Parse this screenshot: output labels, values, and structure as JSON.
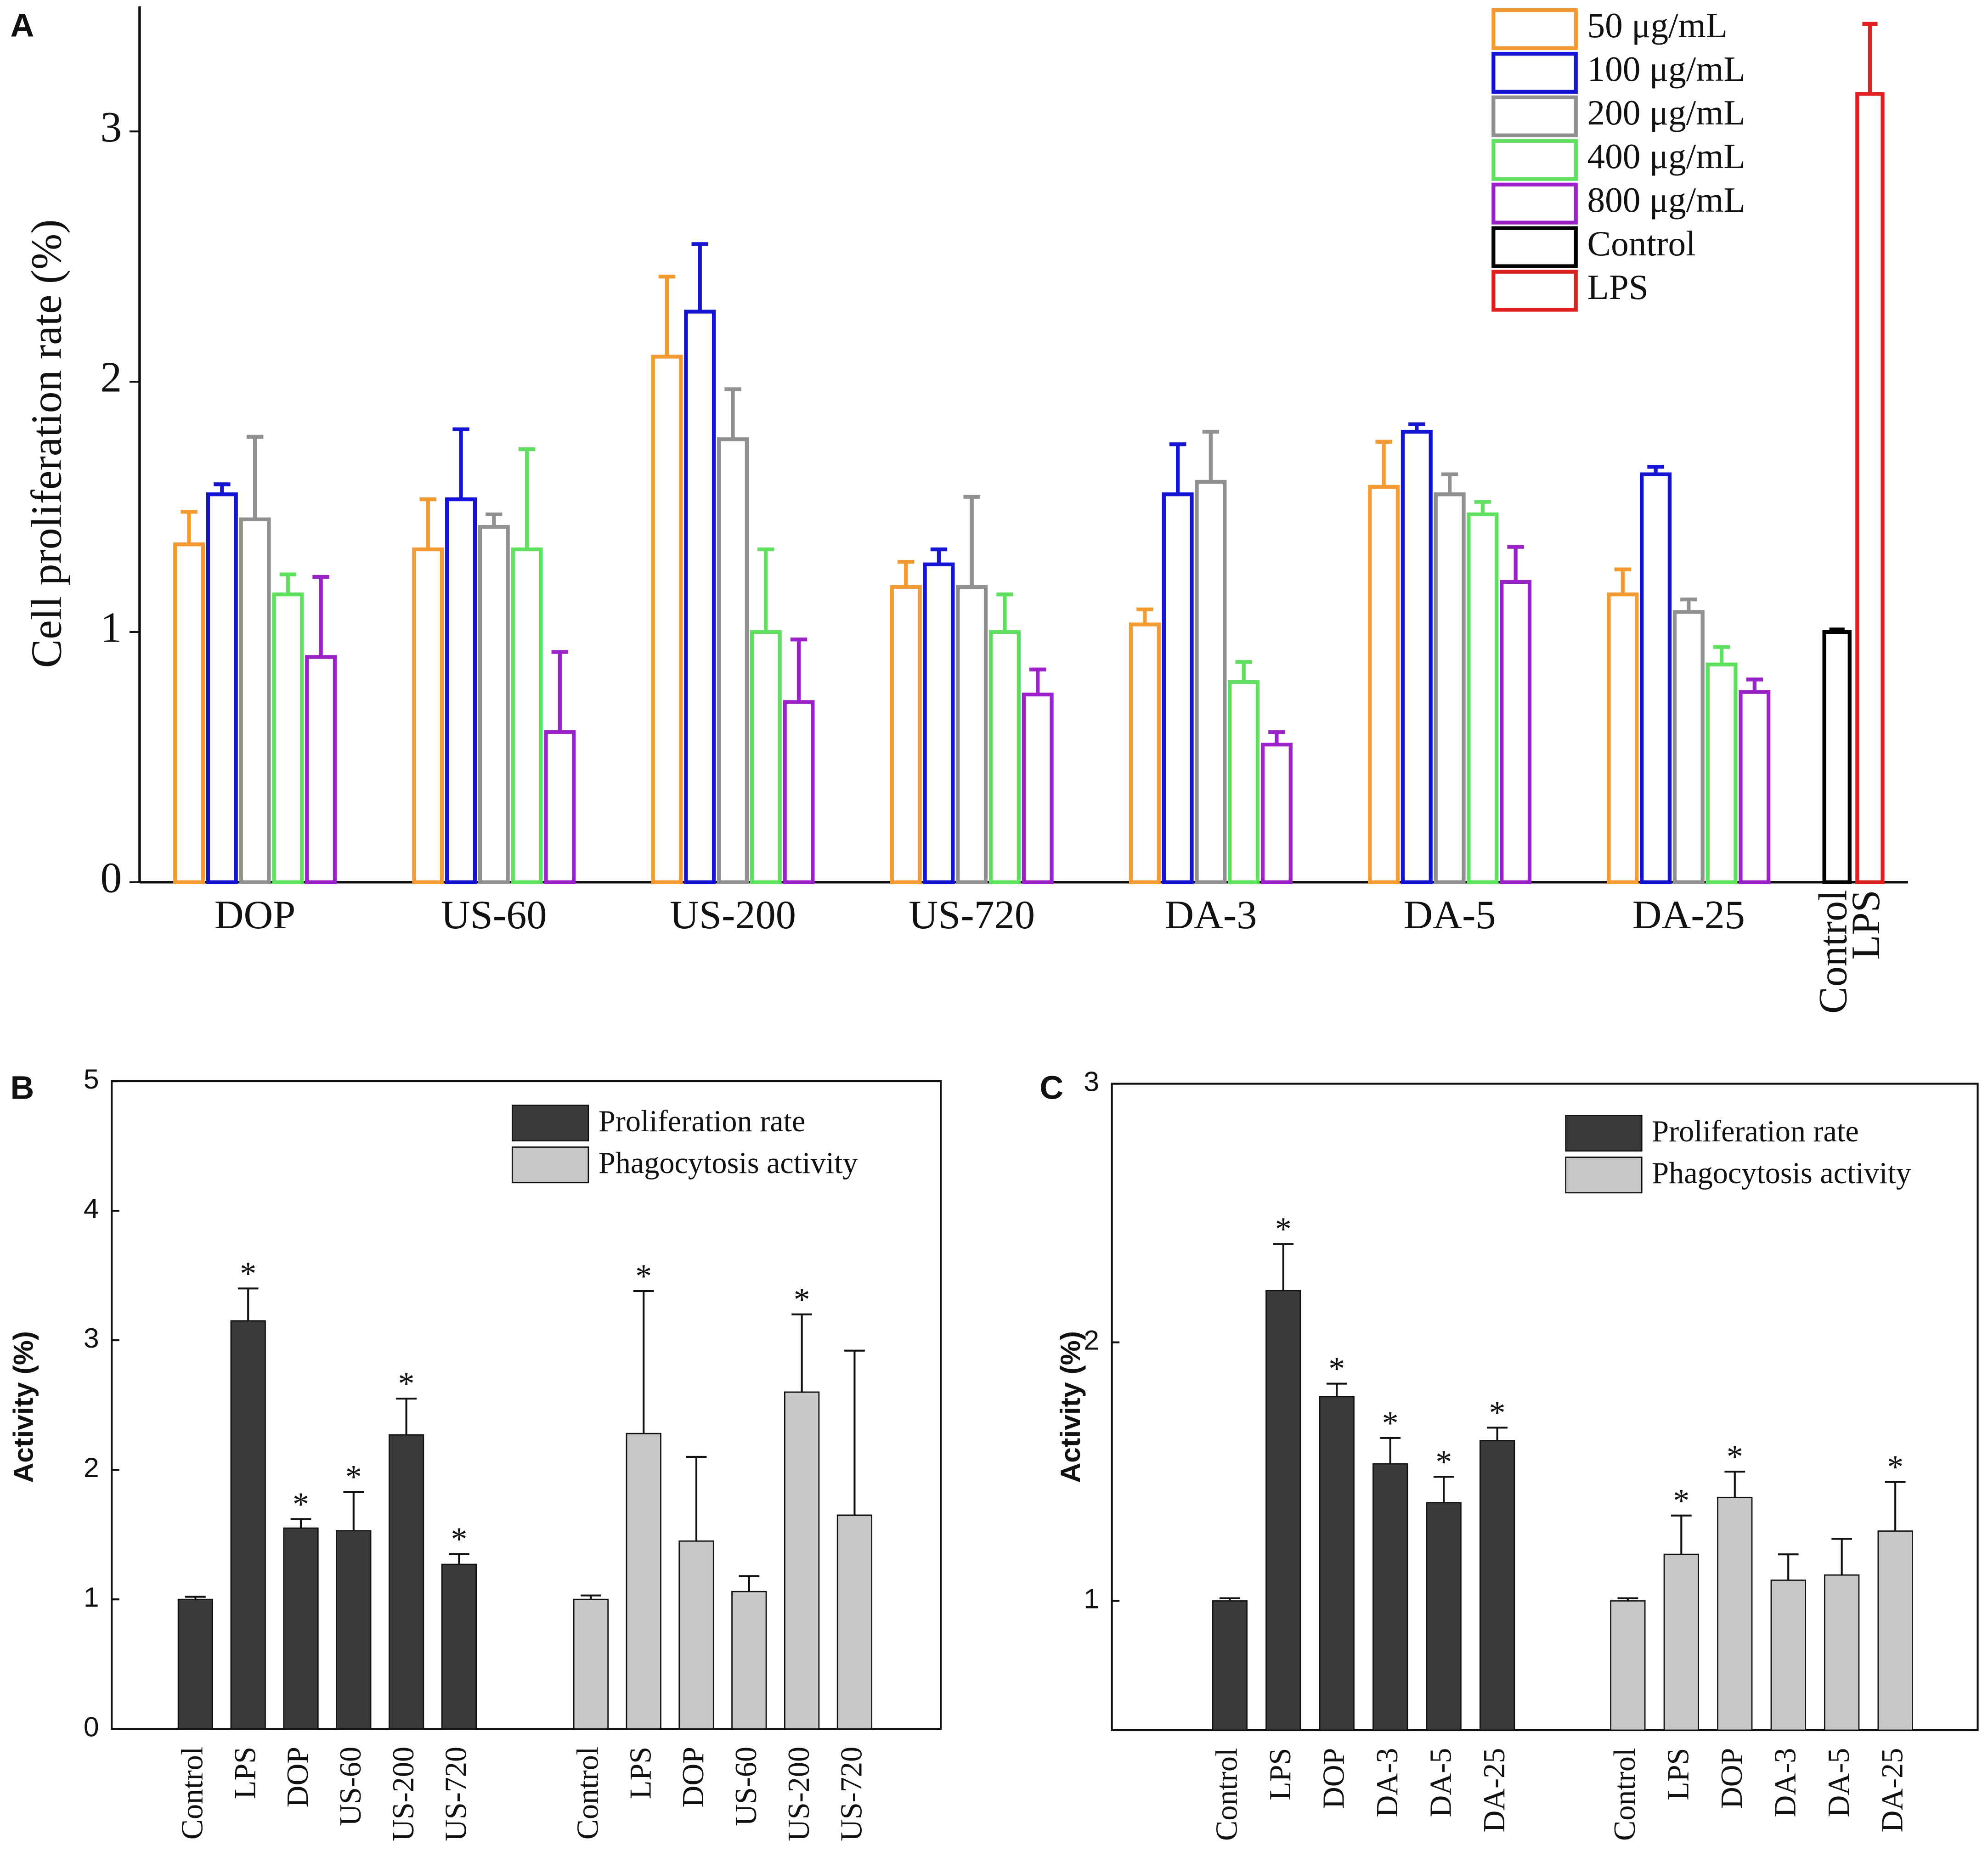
{
  "chart_data": [
    {
      "type": "bar",
      "panel": "A",
      "grouping": "grouped",
      "bar_style": "hollow",
      "legend": "upper right",
      "y_label": "Cell proliferation rate (%)",
      "categories": [
        "DOP",
        "US-60",
        "US-200",
        "US-720",
        "DA-3",
        "DA-5",
        "DA-25",
        "Control",
        "LPS"
      ],
      "ylim": [
        0,
        3.5
      ],
      "yticks": [
        0,
        1,
        2,
        3
      ],
      "series": [
        {
          "name": "50 μg/mL",
          "color": "#f39a32",
          "values": [
            1.35,
            1.33,
            2.1,
            1.18,
            1.03,
            1.58,
            1.15,
            null,
            null
          ],
          "errors": [
            0.13,
            0.2,
            0.32,
            0.1,
            0.06,
            0.18,
            0.1,
            null,
            null
          ]
        },
        {
          "name": "100 μg/mL",
          "color": "#1414d2",
          "values": [
            1.55,
            1.53,
            2.28,
            1.27,
            1.55,
            1.8,
            1.63,
            null,
            null
          ],
          "errors": [
            0.04,
            0.28,
            0.27,
            0.06,
            0.2,
            0.03,
            0.03,
            null,
            null
          ]
        },
        {
          "name": "200 μg/mL",
          "color": "#909090",
          "values": [
            1.45,
            1.42,
            1.77,
            1.18,
            1.6,
            1.55,
            1.08,
            null,
            null
          ],
          "errors": [
            0.33,
            0.05,
            0.2,
            0.36,
            0.2,
            0.08,
            0.05,
            null,
            null
          ]
        },
        {
          "name": "400 μg/mL",
          "color": "#5fe05f",
          "values": [
            1.15,
            1.33,
            1.0,
            1.0,
            0.8,
            1.47,
            0.87,
            null,
            null
          ],
          "errors": [
            0.08,
            0.4,
            0.33,
            0.15,
            0.08,
            0.05,
            0.07,
            null,
            null
          ]
        },
        {
          "name": "800 μg/mL",
          "color": "#9b22c8",
          "values": [
            0.9,
            0.6,
            0.72,
            0.75,
            0.55,
            1.2,
            0.76,
            null,
            null
          ],
          "errors": [
            0.32,
            0.32,
            0.25,
            0.1,
            0.05,
            0.14,
            0.05,
            null,
            null
          ]
        },
        {
          "name": "Control",
          "color": "#000000",
          "values": [
            null,
            null,
            null,
            null,
            null,
            null,
            null,
            1.0,
            null
          ],
          "errors": [
            null,
            null,
            null,
            null,
            null,
            null,
            null,
            0.01,
            null
          ]
        },
        {
          "name": "LPS",
          "color": "#e02020",
          "values": [
            null,
            null,
            null,
            null,
            null,
            null,
            null,
            null,
            3.15
          ],
          "errors": [
            null,
            null,
            null,
            null,
            null,
            null,
            null,
            null,
            0.28
          ]
        }
      ]
    },
    {
      "type": "bar",
      "panel": "B",
      "grouping": "separate",
      "bar_style": "filled",
      "legend": "upper right",
      "y_label": "Activity (%)",
      "categories": [
        "Control",
        "LPS",
        "DOP",
        "US-60",
        "US-200",
        "US-720"
      ],
      "ylim": [
        0,
        5
      ],
      "yticks": [
        0,
        1,
        2,
        3,
        4,
        5
      ],
      "series": [
        {
          "name": "Proliferation rate",
          "color": "#3a3a3a",
          "values": [
            1.0,
            3.15,
            1.55,
            1.53,
            2.27,
            1.27
          ],
          "errors": [
            0.02,
            0.25,
            0.07,
            0.3,
            0.28,
            0.08
          ],
          "significance": [
            null,
            "*",
            "*",
            "*",
            "*",
            "*"
          ]
        },
        {
          "name": "Phagocytosis activity",
          "color": "#c8c8c8",
          "values": [
            1.0,
            2.28,
            1.45,
            1.06,
            2.6,
            1.65
          ],
          "errors": [
            0.03,
            1.1,
            0.65,
            0.12,
            0.6,
            1.27
          ],
          "significance": [
            null,
            "*",
            null,
            null,
            "*",
            null
          ]
        }
      ]
    },
    {
      "type": "bar",
      "panel": "C",
      "grouping": "separate",
      "bar_style": "filled",
      "legend": "upper right",
      "y_label": "Activity (%)",
      "categories": [
        "Control",
        "LPS",
        "DOP",
        "DA-3",
        "DA-5",
        "DA-25"
      ],
      "ylim": [
        0.5,
        3
      ],
      "yticks": [
        1,
        2,
        3
      ],
      "series": [
        {
          "name": "Proliferation rate",
          "color": "#3a3a3a",
          "values": [
            1.0,
            2.2,
            1.79,
            1.53,
            1.38,
            1.62
          ],
          "errors": [
            0.01,
            0.18,
            0.05,
            0.1,
            0.1,
            0.05
          ],
          "significance": [
            null,
            "*",
            "*",
            "*",
            "*",
            "*"
          ]
        },
        {
          "name": "Phagocytosis activity",
          "color": "#c8c8c8",
          "values": [
            1.0,
            1.18,
            1.4,
            1.08,
            1.1,
            1.27
          ],
          "errors": [
            0.01,
            0.15,
            0.1,
            0.1,
            0.14,
            0.19
          ],
          "significance": [
            null,
            "*",
            "*",
            null,
            null,
            "*"
          ]
        }
      ]
    }
  ]
}
